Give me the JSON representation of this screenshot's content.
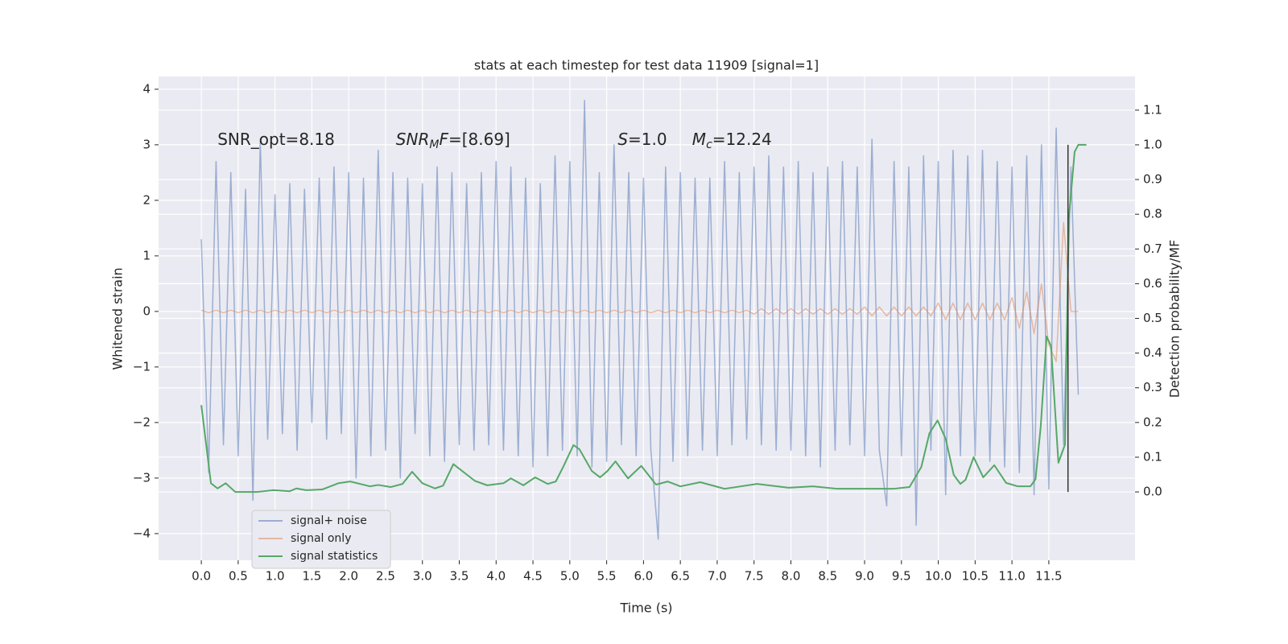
{
  "chart_data": {
    "type": "line",
    "title": "stats at each timestep for test data 11909 [signal=1]",
    "x_label": "Time (s)",
    "y_label": "Whitened strain",
    "y2_label": "Detection probability/MF",
    "xlim": [
      -0.58,
      12.67
    ],
    "ylim": [
      -4.48,
      4.23
    ],
    "y2lim": [
      -0.197,
      1.197
    ],
    "xticks": [
      {
        "value": 0,
        "label": "0.0"
      },
      {
        "value": 0.5,
        "label": "0.5"
      },
      {
        "value": 1,
        "label": "1.0"
      },
      {
        "value": 1.5,
        "label": "1.5"
      },
      {
        "value": 2,
        "label": "2.0"
      },
      {
        "value": 2.5,
        "label": "2.5"
      },
      {
        "value": 3,
        "label": "3.0"
      },
      {
        "value": 3.5,
        "label": "3.5"
      },
      {
        "value": 4,
        "label": "4.0"
      },
      {
        "value": 4.5,
        "label": "4.5"
      },
      {
        "value": 5,
        "label": "5.0"
      },
      {
        "value": 5.5,
        "label": "5.5"
      },
      {
        "value": 6,
        "label": "6.0"
      },
      {
        "value": 6.5,
        "label": "6.5"
      },
      {
        "value": 7,
        "label": "7.0"
      },
      {
        "value": 7.5,
        "label": "7.5"
      },
      {
        "value": 8,
        "label": "8.0"
      },
      {
        "value": 8.5,
        "label": "8.5"
      },
      {
        "value": 9,
        "label": "9.0"
      },
      {
        "value": 9.5,
        "label": "9.5"
      },
      {
        "value": 10,
        "label": "10.0"
      },
      {
        "value": 10.5,
        "label": "10.5"
      },
      {
        "value": 11,
        "label": "11.0"
      },
      {
        "value": 11.5,
        "label": "11.5"
      }
    ],
    "yticks": [
      {
        "value": -4,
        "label": "−4"
      },
      {
        "value": -3,
        "label": "−3"
      },
      {
        "value": -2,
        "label": "−2"
      },
      {
        "value": -1,
        "label": "−1"
      },
      0,
      1,
      2,
      3,
      4
    ],
    "y2ticks": [
      {
        "value": 0,
        "label": "0.0"
      },
      {
        "value": 0.1,
        "label": "0.1"
      },
      {
        "value": 0.2,
        "label": "0.2"
      },
      {
        "value": 0.3,
        "label": "0.3"
      },
      {
        "value": 0.4,
        "label": "0.4"
      },
      {
        "value": 0.5,
        "label": "0.5"
      },
      {
        "value": 0.6,
        "label": "0.6"
      },
      {
        "value": 0.7,
        "label": "0.7"
      },
      {
        "value": 0.8,
        "label": "0.8"
      },
      {
        "value": 0.9,
        "label": "0.9"
      },
      {
        "value": 1,
        "label": "1.0"
      },
      {
        "value": 1.1,
        "label": "1.1"
      }
    ],
    "grid": true,
    "legend": "lower left",
    "x": [
      0,
      0.1,
      0.2,
      0.3,
      0.4,
      0.5,
      0.6,
      0.7,
      0.8,
      0.9,
      1,
      1.1,
      1.2,
      1.3,
      1.4,
      1.5,
      1.6,
      1.7,
      1.8,
      1.9,
      2,
      2.1,
      2.2,
      2.3,
      2.4,
      2.5,
      2.6,
      2.7,
      2.8,
      2.9,
      3,
      3.1,
      3.2,
      3.3,
      3.4,
      3.5,
      3.6,
      3.7,
      3.8,
      3.9,
      4,
      4.1,
      4.2,
      4.3,
      4.4,
      4.5,
      4.6,
      4.7,
      4.8,
      4.9,
      5,
      5.1,
      5.2,
      5.3,
      5.4,
      5.5,
      5.6,
      5.7,
      5.8,
      5.9,
      6,
      6.1,
      6.2,
      6.3,
      6.4,
      6.5,
      6.6,
      6.7,
      6.8,
      6.9,
      7,
      7.1,
      7.2,
      7.3,
      7.4,
      7.5,
      7.6,
      7.7,
      7.8,
      7.9,
      8,
      8.1,
      8.2,
      8.3,
      8.4,
      8.5,
      8.6,
      8.7,
      8.8,
      8.9,
      9,
      9.1,
      9.2,
      9.3,
      9.4,
      9.5,
      9.6,
      9.7,
      9.8,
      9.9,
      10,
      10.1,
      10.2,
      10.3,
      10.4,
      10.5,
      10.6,
      10.7,
      10.8,
      10.9,
      11,
      11.1,
      11.2,
      11.3,
      11.4,
      11.5,
      11.6,
      11.7,
      11.8,
      11.9
    ],
    "series": [
      {
        "name": "signal+ noise",
        "color": "#4c72b0",
        "opacity": 0.5,
        "values": [
          1.3,
          -2.9,
          2.7,
          -2.4,
          2.5,
          -2.6,
          2.2,
          -3.4,
          3.1,
          -2.3,
          2.1,
          -2.2,
          2.3,
          -2.5,
          2.2,
          -2.0,
          2.4,
          -2.3,
          2.6,
          -2.2,
          2.5,
          -3.0,
          2.4,
          -2.6,
          2.9,
          -2.5,
          2.5,
          -3.0,
          2.4,
          -2.2,
          2.3,
          -2.6,
          2.6,
          -2.7,
          2.5,
          -2.4,
          2.3,
          -2.5,
          2.5,
          -2.4,
          2.7,
          -2.5,
          2.6,
          -2.6,
          2.4,
          -2.8,
          2.3,
          -2.6,
          2.8,
          -2.5,
          2.7,
          -2.6,
          3.8,
          -2.8,
          2.5,
          -2.7,
          3.0,
          -2.4,
          2.5,
          -2.6,
          2.4,
          -2.5,
          -4.1,
          2.6,
          -2.7,
          2.5,
          -2.6,
          2.4,
          -2.5,
          2.4,
          -2.6,
          2.7,
          -2.4,
          2.5,
          -2.3,
          2.6,
          -2.4,
          2.8,
          -2.5,
          2.6,
          -2.5,
          2.7,
          -2.6,
          2.5,
          -2.8,
          2.6,
          -2.5,
          2.7,
          -2.4,
          2.6,
          -2.6,
          3.1,
          -2.5,
          -3.5,
          2.7,
          -2.6,
          2.6,
          -3.85,
          2.8,
          -2.5,
          2.7,
          -3.3,
          2.9,
          -2.6,
          2.8,
          -2.6,
          2.9,
          -2.7,
          2.7,
          -2.8,
          2.6,
          -2.9,
          2.8,
          -3.3,
          3.0,
          -3.2,
          3.3,
          -2.4,
          2.6,
          -1.5
        ]
      },
      {
        "name": "signal only",
        "color": "#dd8452",
        "opacity": 0.5,
        "values": [
          0.02,
          -0.02,
          0.02,
          -0.02,
          0.02,
          -0.02,
          0.02,
          -0.02,
          0.02,
          -0.02,
          0.02,
          -0.02,
          0.02,
          -0.02,
          0.02,
          -0.02,
          0.02,
          -0.02,
          0.02,
          -0.02,
          0.02,
          -0.02,
          0.02,
          -0.02,
          0.02,
          -0.02,
          0.02,
          -0.02,
          0.02,
          -0.02,
          0.02,
          -0.02,
          0.02,
          -0.02,
          0.02,
          -0.02,
          0.02,
          -0.02,
          0.02,
          -0.02,
          0.02,
          -0.02,
          0.02,
          -0.02,
          0.02,
          -0.02,
          0.02,
          -0.02,
          0.02,
          -0.02,
          0.02,
          -0.02,
          0.02,
          -0.02,
          0.02,
          -0.02,
          0.02,
          -0.02,
          0.02,
          -0.02,
          0.02,
          -0.02,
          0.02,
          -0.02,
          0.02,
          -0.02,
          0.02,
          -0.02,
          0.02,
          -0.02,
          0.02,
          -0.02,
          0.02,
          -0.02,
          0.02,
          -0.05,
          0.05,
          -0.05,
          0.05,
          -0.05,
          0.05,
          -0.05,
          0.05,
          -0.05,
          0.05,
          -0.05,
          0.05,
          -0.05,
          0.05,
          -0.05,
          0.08,
          -0.08,
          0.08,
          -0.08,
          0.08,
          -0.08,
          0.08,
          -0.08,
          0.08,
          -0.08,
          0.15,
          -0.15,
          0.15,
          -0.15,
          0.15,
          -0.15,
          0.15,
          -0.15,
          0.15,
          -0.15,
          0.25,
          -0.3,
          0.35,
          -0.4,
          0.5,
          -0.6,
          -0.9,
          1.6,
          0,
          0
        ]
      },
      {
        "name": "signal statistics",
        "color": "#55a868",
        "opacity": 1,
        "axis": "y2",
        "x": [
          0,
          0.13,
          0.22,
          0.33,
          0.46,
          0.76,
          0.98,
          1.2,
          1.29,
          1.42,
          1.64,
          1.86,
          2.02,
          2.29,
          2.4,
          2.57,
          2.73,
          2.86,
          3,
          3.17,
          3.28,
          3.42,
          3.71,
          3.88,
          4.1,
          4.2,
          4.37,
          4.53,
          4.7,
          4.81,
          4.91,
          5.05,
          5.13,
          5.3,
          5.41,
          5.51,
          5.62,
          5.79,
          5.97,
          6.17,
          6.33,
          6.5,
          6.77,
          7.1,
          7.54,
          7.97,
          8.3,
          8.63,
          9.06,
          9.39,
          9.61,
          9.77,
          9.88,
          9.99,
          10.1,
          10.21,
          10.3,
          10.37,
          10.48,
          10.61,
          10.76,
          10.92,
          11.08,
          11.25,
          11.32,
          11.39,
          11.47,
          11.53,
          11.63,
          11.72,
          11.77,
          11.85,
          11.9,
          12.01
        ],
        "values": [
          0.25,
          0.025,
          0.01,
          0.025,
          0,
          0,
          0.005,
          0.002,
          0.01,
          0.005,
          0.007,
          0.025,
          0.03,
          0.016,
          0.02,
          0.014,
          0.023,
          0.058,
          0.025,
          0.01,
          0.018,
          0.08,
          0.032,
          0.019,
          0.025,
          0.039,
          0.019,
          0.042,
          0.023,
          0.03,
          0.072,
          0.135,
          0.123,
          0.06,
          0.042,
          0.06,
          0.088,
          0.039,
          0.075,
          0.021,
          0.03,
          0.016,
          0.028,
          0.009,
          0.023,
          0.012,
          0.016,
          0.009,
          0.009,
          0.009,
          0.014,
          0.072,
          0.169,
          0.206,
          0.153,
          0.049,
          0.023,
          0.035,
          0.1,
          0.042,
          0.077,
          0.026,
          0.016,
          0.016,
          0.037,
          0.188,
          0.448,
          0.42,
          0.084,
          0.137,
          0.784,
          0.98,
          1,
          1
        ]
      }
    ],
    "vline": {
      "x": 11.76,
      "ymin": 0,
      "ymax": 1,
      "color": "#333333"
    },
    "annotations": [
      {
        "x": 0.22,
        "y": 3.0,
        "parts": [
          {
            "text": "SNR_opt=8.18",
            "style": "normal"
          }
        ]
      },
      {
        "x": 2.64,
        "y": 3.0,
        "parts": [
          {
            "text": "SNR",
            "style": "italic"
          },
          {
            "text": "M",
            "style": "italic-sub"
          },
          {
            "text": "F",
            "style": "italic"
          },
          {
            "text": "=[8.69]",
            "style": "normal"
          }
        ]
      },
      {
        "x": 5.65,
        "y": 3.0,
        "parts": [
          {
            "text": "S",
            "style": "italic"
          },
          {
            "text": "=1.0",
            "style": "normal"
          }
        ]
      },
      {
        "x": 6.66,
        "y": 3.0,
        "parts": [
          {
            "text": "M",
            "style": "italic"
          },
          {
            "text": "c",
            "style": "italic-sub"
          },
          {
            "text": "=12.24",
            "style": "normal"
          }
        ]
      }
    ]
  }
}
